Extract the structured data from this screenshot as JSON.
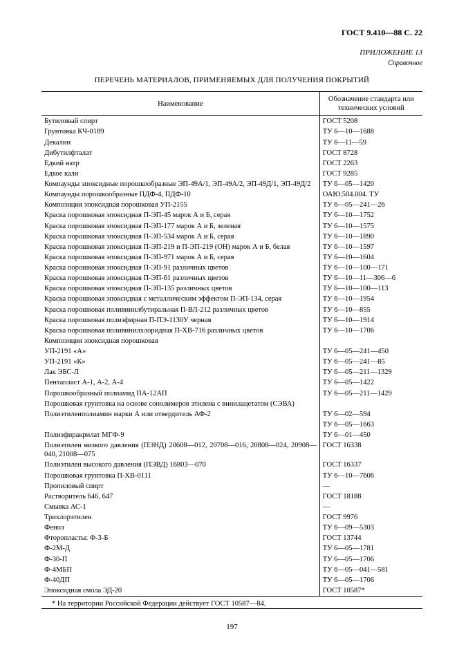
{
  "header": "ГОСТ 9.410—88 С. 22",
  "annex": "ПРИЛОЖЕНИЕ 13",
  "annex_sub": "Справочное",
  "title": "ПЕРЕЧЕНЬ МАТЕРИАЛОВ, ПРИМЕНЯЕМЫХ ДЛЯ ПОЛУЧЕНИЯ ПОКРЫТИЙ",
  "col_name": "Наименование",
  "col_std": "Обозначение стандарта или технических условий",
  "rows": [
    {
      "n": "Бутиловый спирт",
      "s": "ГОСТ 5208"
    },
    {
      "n": "Грунтовка КЧ-0189",
      "s": "ТУ 6—10—1688"
    },
    {
      "n": "Декалин",
      "s": "ТУ 6—11—59"
    },
    {
      "n": "Дибутилфталат",
      "s": "ГОСТ 8728"
    },
    {
      "n": "Едкий натр",
      "s": "ГОСТ 2263"
    },
    {
      "n": "Едкое кали",
      "s": "ГОСТ 9285"
    },
    {
      "n": "Компаунды эпоксидные порошкообразные ЭП-49А/1, ЭП-49А/2, ЭП-49Д/1, ЭП-49Д/2",
      "s": "ТУ 6—05—1420",
      "justify": true
    },
    {
      "n": "Компаунды порошкообразные ПДФ-4, ПДФ-10",
      "s": "ОАЮ.504.004. ТУ"
    },
    {
      "n": "Композиция эпоксидная порошковая УП-2155",
      "s": "ТУ 6—05—241—26"
    },
    {
      "n": "Краска порошковая эпоксидная П-ЭП-45 марок А и Б, серая",
      "s": "ТУ 6—10—1752"
    },
    {
      "n": "Краска порошковая эпоксидная П-ЭП-177 марок А и Б, зеленая",
      "s": "ТУ 6—10—1575"
    },
    {
      "n": "Краска порошковая эпоксидная П-ЭП-534 марок А и Б, серая",
      "s": "ТУ 6—10—1890"
    },
    {
      "n": "Краска порошковая эпоксидная П-ЭП-219 и П-ЭП-219 (ОН) марок А и Б, белая",
      "s": "ТУ 6—10—1597"
    },
    {
      "n": "Краска порошковая эпоксидная П-ЭП-971 марок А и Б, серая",
      "s": "ТУ 6—10—1604"
    },
    {
      "n": "Краска порошковая эпоксидная П-ЭП-91 различных цветов",
      "s": "ТУ 6—10—100—171"
    },
    {
      "n": "Краска порошковая эпоксидная П-ЭП-61 различных цветов",
      "s": "ТУ 6—10—11—306—6"
    },
    {
      "n": "Краска порошковая эпоксидная П-ЭП-135 различных цветов",
      "s": "ТУ 6—10—100—113"
    },
    {
      "n": "Краска порошковая эпоксидная с металлическим эффектом П-ЭП-134, серая",
      "s": "ТУ 6—10—1954"
    },
    {
      "n": "Краска порошковая поливинилбутиральная П-ВЛ-212 различных цветов",
      "s": "ТУ 6—10—855"
    },
    {
      "n": "Краска порошковая полиэфирная П-ПЭ-1130У черная",
      "s": "ТУ 6—10—1914"
    },
    {
      "n": "Краска порошковая поливинилхлоридная П-ХВ-716 различных цветов",
      "s": "ТУ 6—10—1706"
    },
    {
      "n": "Композиция эпоксидная порошковая",
      "s": ""
    },
    {
      "n": "УП-2191 «А»",
      "s": "ТУ 6—05—241—450"
    },
    {
      "n": "УП-2191 «К»",
      "s": "ТУ 6—05—241—85"
    },
    {
      "n": "Лак ЭБС-Л",
      "s": "ТУ 6—05—211—1329"
    },
    {
      "n": "Пентапласт А-1, А-2, А-4",
      "s": "ТУ 6—05—1422"
    },
    {
      "n": "Порошкообразный полиамид ПА-12АП",
      "s": "ТУ 6—05—211—1429"
    },
    {
      "n": "Порошковая грунтовка на основе сополимеров этилена с винилацетатом (СЭВА)",
      "s": ""
    },
    {
      "n": "Полиэтиленполиамин марки А или отвердитель АФ-2",
      "s": "ТУ 6—02—594"
    },
    {
      "n": "",
      "s": "ТУ 6—05—1663"
    },
    {
      "n": "Полиэфиракрилат МГФ-9",
      "s": "ТУ 6—01—450"
    },
    {
      "n": "Полиэтилен низкого давления (ПЭНД) 20608—012, 20708—016, 20808—024, 20908—040, 21008—075",
      "s": "ГОСТ 16338",
      "justify": true
    },
    {
      "n": "Полиэтилен высокого давления (ПЭВД) 16803—070",
      "s": "ГОСТ 16337"
    },
    {
      "n": "Порошковая грунтовка П-ХВ-0111",
      "s": "ТУ 6—10—7606"
    },
    {
      "n": "Пропиловый спирт",
      "s": "—"
    },
    {
      "n": "Растворитель 646, 647",
      "s": "ГОСТ 18188"
    },
    {
      "n": "Смывка АС-1",
      "s": "—"
    },
    {
      "n": "Трихлорэтилен",
      "s": "ГОСТ 9976"
    },
    {
      "n": "Фенол",
      "s": "ТУ 6—09—5303"
    },
    {
      "n": "Фторопласты: Ф-3-Б",
      "s": "ГОСТ 13744"
    },
    {
      "n": "Ф-2М-Д",
      "s": "ТУ 6—05—1781",
      "indent": true
    },
    {
      "n": "Ф-30-П",
      "s": "ТУ 6—05—1706",
      "indent": true
    },
    {
      "n": "Ф-4МБП",
      "s": "ТУ 6—05—041—581",
      "indent": true
    },
    {
      "n": "Ф-40ДП",
      "s": "ТУ 6—05—1706",
      "indent": true
    },
    {
      "n": "Эпоксидная смола ЭД-20",
      "s": "ГОСТ 10587*"
    }
  ],
  "footnote": "* На территории Российской Федерации действует ГОСТ 10587—84.",
  "page_num": "197"
}
